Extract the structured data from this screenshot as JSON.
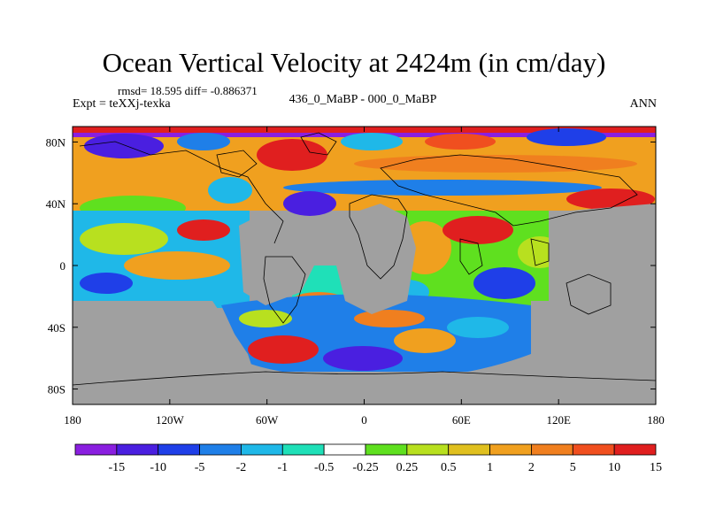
{
  "title": "Ocean Vertical Velocity at 2424m (in cm/day)",
  "stats_text": "rmsd= 18.595 diff= -0.886371",
  "experiment_text": "Expt = teXXj-texka",
  "comparison_text": "436_0_MaBP - 000_0_MaBP",
  "season_text": "ANN",
  "colors": {
    "land": "#a0a0a0",
    "palette": [
      "#8a1fe0",
      "#4a1fe0",
      "#1f3fe8",
      "#1f7fe8",
      "#1fb8e8",
      "#1fe0b8",
      "#ffffff",
      "#5fe01f",
      "#b8e01f",
      "#e0c01f",
      "#f0a01f",
      "#f07f1f",
      "#f04f1f",
      "#e01f1f"
    ]
  },
  "map": {
    "lat_labels": [
      "80N",
      "40N",
      "0",
      "40S",
      "80S"
    ],
    "lat_values": [
      80,
      40,
      0,
      -40,
      -80
    ],
    "lon_labels": [
      "180",
      "120W",
      "60W",
      "0",
      "60E",
      "120E",
      "180"
    ],
    "lon_values": [
      -180,
      -120,
      -60,
      0,
      60,
      120,
      180
    ]
  },
  "colorbar": {
    "labels": [
      "-15",
      "-10",
      "-5",
      "-2",
      "-1",
      "-0.5",
      "-0.25",
      "0.25",
      "0.5",
      "1",
      "2",
      "5",
      "10",
      "15"
    ]
  }
}
